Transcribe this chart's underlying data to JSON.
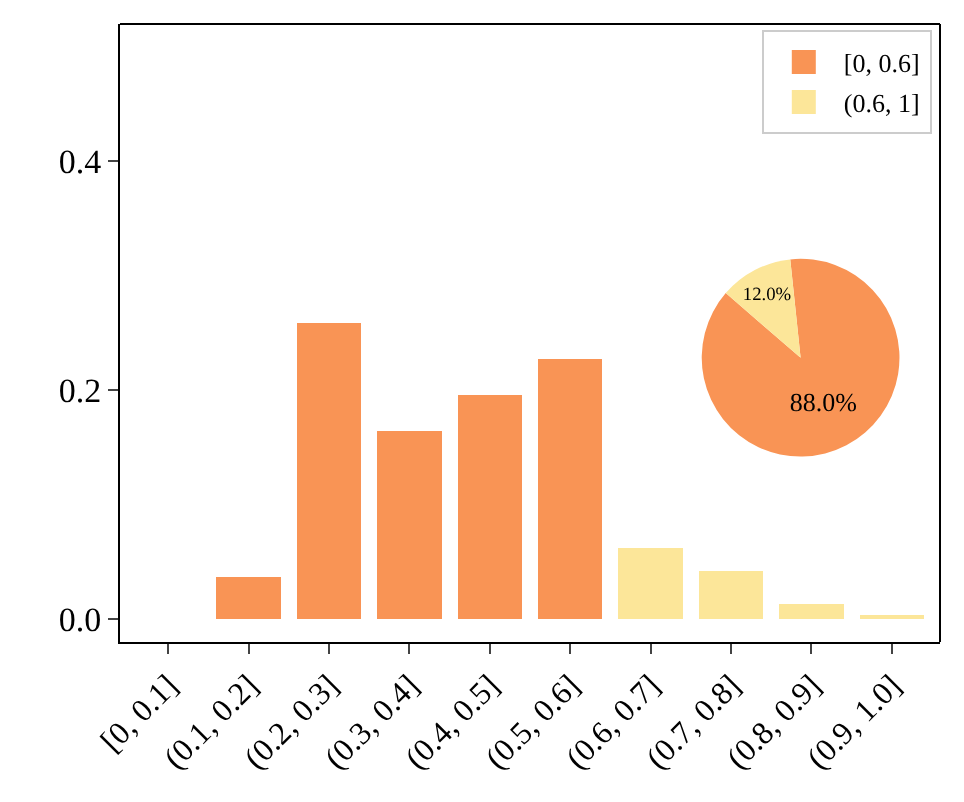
{
  "chart_data": [
    {
      "type": "bar",
      "categories": [
        "[0, 0.1]",
        "(0.1, 0.2]",
        "(0.2, 0.3]",
        "(0.3, 0.4]",
        "(0.4, 0.5]",
        "(0.5, 0.6]",
        "(0.6, 0.7]",
        "(0.7, 0.8]",
        "(0.8, 0.9]",
        "(0.9, 1.0]"
      ],
      "series": [
        {
          "name": "[0, 0.6]",
          "color": "#f99455",
          "values": [
            0,
            0.037,
            0.259,
            0.164,
            0.196,
            0.227,
            null,
            null,
            null,
            null
          ]
        },
        {
          "name": "(0.6, 1]",
          "color": "#fce699",
          "values": [
            null,
            null,
            null,
            null,
            null,
            null,
            0.062,
            0.042,
            0.013,
            0.004
          ]
        }
      ],
      "stacked": true,
      "ylim": [
        -0.02,
        0.52
      ],
      "yticks": [
        {
          "value": 0.0,
          "label": "0.0"
        },
        {
          "value": 0.2,
          "label": "0.2"
        },
        {
          "value": 0.4,
          "label": "0.4"
        }
      ],
      "legend": "top right"
    },
    {
      "type": "pie",
      "categories": [
        null,
        null
      ],
      "values": [
        88.0,
        12.0
      ],
      "colors": [
        "#f99455",
        "#fce699"
      ],
      "value_labels": [
        "88.0%",
        "12.0%"
      ]
    }
  ]
}
